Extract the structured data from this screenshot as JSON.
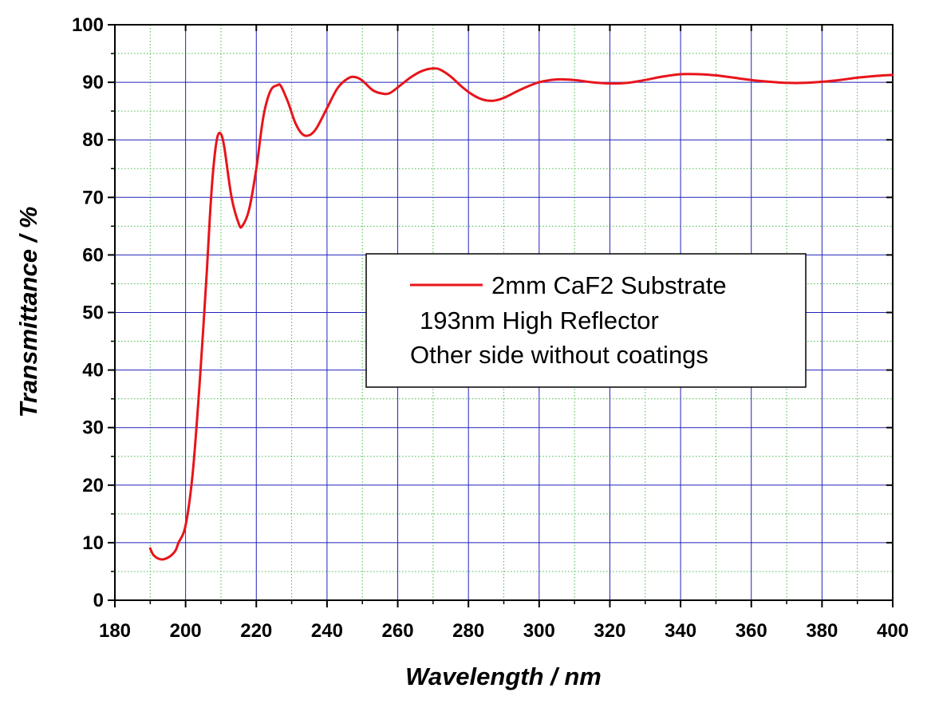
{
  "chart_data": {
    "type": "line",
    "xlabel": "Wavelength / nm",
    "ylabel": "Transmittance / %",
    "xlim": [
      180,
      400
    ],
    "ylim": [
      0,
      100
    ],
    "x_ticks": [
      180,
      200,
      220,
      240,
      260,
      280,
      300,
      320,
      340,
      360,
      380,
      400
    ],
    "y_ticks": [
      0,
      10,
      20,
      30,
      40,
      50,
      60,
      70,
      80,
      90,
      100
    ],
    "x_tick_labels": [
      "180",
      "200",
      "220",
      "240",
      "260",
      "280",
      "300",
      "320",
      "340",
      "360",
      "380",
      "400"
    ],
    "y_tick_labels": [
      "0",
      "10",
      "20",
      "30",
      "40",
      "50",
      "60",
      "70",
      "80",
      "90",
      "100"
    ],
    "x_minor_step": 10,
    "y_minor_step": 5,
    "grid": true,
    "legend": {
      "placement": "center-right",
      "lines": [
        "2mm CaF2 Substrate",
        "193nm High Reflector",
        "Other side without coatings"
      ]
    },
    "colors": {
      "series": "#e8141b",
      "major_grid": "#2222bb",
      "minor_grid": "#44bb44",
      "axis": "#000000"
    },
    "series": [
      {
        "name": "2mm CaF2 Substrate",
        "x": [
          190,
          191,
          193,
          195,
          197,
          198,
          200,
          202,
          204,
          206,
          207,
          208,
          209,
          210,
          211,
          213,
          215,
          216,
          218,
          220,
          222,
          224,
          226,
          227,
          229,
          231,
          233,
          235,
          237,
          240,
          243,
          246,
          248,
          250,
          253,
          256,
          258,
          261,
          264,
          267,
          270,
          272,
          275,
          278,
          281,
          284,
          287,
          290,
          295,
          300,
          305,
          310,
          315,
          320,
          325,
          330,
          335,
          340,
          345,
          350,
          355,
          360,
          365,
          370,
          375,
          380,
          385,
          390,
          395,
          400
        ],
        "y": [
          9.0,
          7.8,
          7.1,
          7.4,
          8.5,
          10.0,
          13.0,
          22.0,
          38.0,
          57.0,
          68.0,
          76.0,
          80.5,
          81.0,
          78.5,
          70.0,
          65.5,
          65.0,
          68.0,
          75.0,
          84.0,
          88.5,
          89.5,
          89.3,
          86.5,
          83.0,
          81.0,
          80.8,
          82.0,
          85.5,
          89.0,
          90.7,
          90.9,
          90.3,
          88.6,
          88.0,
          88.2,
          89.6,
          91.0,
          92.0,
          92.4,
          92.2,
          91.0,
          89.3,
          87.9,
          87.0,
          86.8,
          87.3,
          88.8,
          90.0,
          90.5,
          90.4,
          90.0,
          89.8,
          89.9,
          90.4,
          91.0,
          91.4,
          91.4,
          91.2,
          90.8,
          90.4,
          90.1,
          89.9,
          89.9,
          90.1,
          90.4,
          90.8,
          91.1,
          91.3
        ]
      }
    ]
  }
}
